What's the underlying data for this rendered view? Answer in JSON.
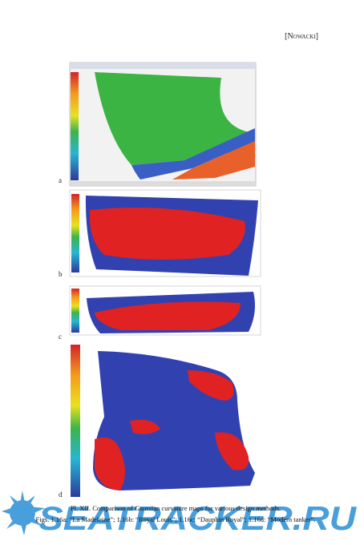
{
  "header": {
    "running_head": "[Nowacki]"
  },
  "figures": [
    {
      "label": "a"
    },
    {
      "label": "b"
    },
    {
      "label": "c"
    },
    {
      "label": "d"
    }
  ],
  "caption": {
    "lines": [
      "Pl. XII. Comparison of Gaussian curvature maps for various design methods.",
      "Figs. 1.16a: “La Madeleine”; 1.16b: “Royal Louis”; 1.16c: “Dauphin Royal”; 1.16d: “Modern tanker”."
    ]
  },
  "watermark": {
    "text": "SEATRACKER.RU"
  }
}
